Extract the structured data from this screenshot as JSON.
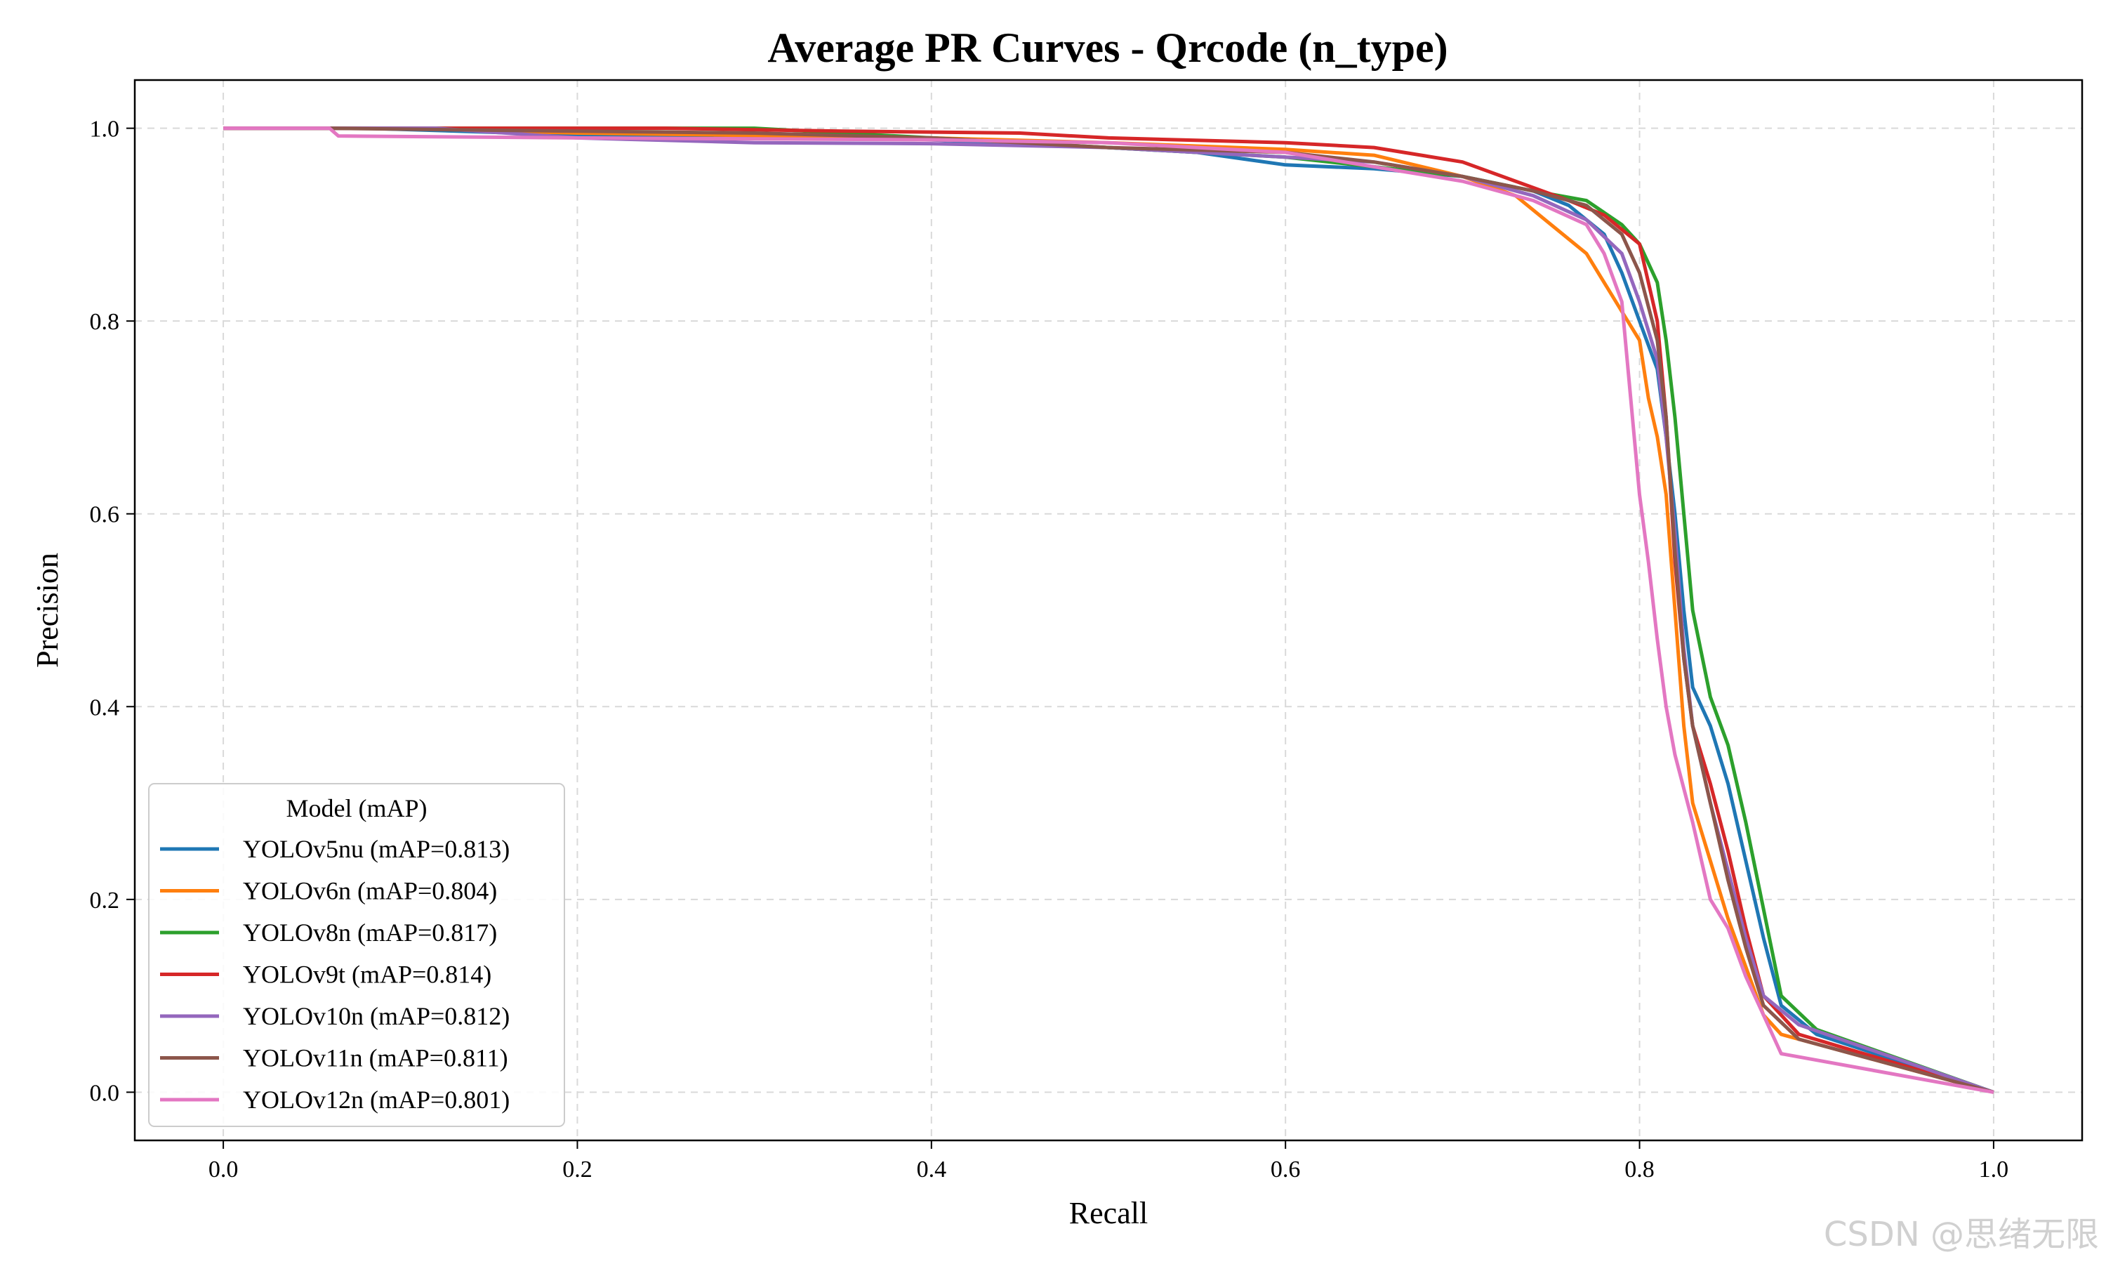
{
  "chart_data": {
    "type": "line",
    "title": "Average PR Curves - Qrcode (n_type)",
    "xlabel": "Recall",
    "ylabel": "Precision",
    "xlim": [
      -0.05,
      1.05
    ],
    "ylim": [
      -0.05,
      1.05
    ],
    "x_ticks": [
      0.0,
      0.2,
      0.4,
      0.6,
      0.8,
      1.0
    ],
    "x_tick_labels": [
      "0.0",
      "0.2",
      "0.4",
      "0.6",
      "0.8",
      "1.0"
    ],
    "y_ticks": [
      0.0,
      0.2,
      0.4,
      0.6,
      0.8,
      1.0
    ],
    "y_tick_labels": [
      "0.0",
      "0.2",
      "0.4",
      "0.6",
      "0.8",
      "1.0"
    ],
    "grid": true,
    "legend": {
      "title": "Model (mAP)",
      "position": "lower-left"
    },
    "series": [
      {
        "name": "YOLOv5nu (mAP=0.813)",
        "color": "#1f77b4",
        "points": [
          [
            0,
            1.0
          ],
          [
            0.08,
            1.0
          ],
          [
            0.2,
            0.993
          ],
          [
            0.4,
            0.988
          ],
          [
            0.5,
            0.98
          ],
          [
            0.55,
            0.975
          ],
          [
            0.6,
            0.962
          ],
          [
            0.65,
            0.958
          ],
          [
            0.7,
            0.95
          ],
          [
            0.74,
            0.935
          ],
          [
            0.76,
            0.92
          ],
          [
            0.78,
            0.89
          ],
          [
            0.79,
            0.85
          ],
          [
            0.8,
            0.8
          ],
          [
            0.81,
            0.75
          ],
          [
            0.815,
            0.68
          ],
          [
            0.82,
            0.6
          ],
          [
            0.825,
            0.5
          ],
          [
            0.83,
            0.42
          ],
          [
            0.84,
            0.38
          ],
          [
            0.85,
            0.32
          ],
          [
            0.86,
            0.24
          ],
          [
            0.87,
            0.16
          ],
          [
            0.88,
            0.09
          ],
          [
            0.9,
            0.06
          ],
          [
            1.0,
            0.0
          ]
        ]
      },
      {
        "name": "YOLOv6n (mAP=0.804)",
        "color": "#ff7f0e",
        "points": [
          [
            0,
            1.0
          ],
          [
            0.1,
            1.0
          ],
          [
            0.2,
            0.995
          ],
          [
            0.4,
            0.99
          ],
          [
            0.5,
            0.985
          ],
          [
            0.6,
            0.978
          ],
          [
            0.65,
            0.972
          ],
          [
            0.7,
            0.95
          ],
          [
            0.73,
            0.93
          ],
          [
            0.75,
            0.9
          ],
          [
            0.77,
            0.87
          ],
          [
            0.78,
            0.84
          ],
          [
            0.79,
            0.81
          ],
          [
            0.8,
            0.78
          ],
          [
            0.805,
            0.72
          ],
          [
            0.81,
            0.68
          ],
          [
            0.815,
            0.62
          ],
          [
            0.82,
            0.5
          ],
          [
            0.825,
            0.38
          ],
          [
            0.83,
            0.3
          ],
          [
            0.84,
            0.24
          ],
          [
            0.85,
            0.18
          ],
          [
            0.86,
            0.13
          ],
          [
            0.87,
            0.08
          ],
          [
            0.88,
            0.06
          ],
          [
            1.0,
            0.0
          ]
        ]
      },
      {
        "name": "YOLOv8n (mAP=0.817)",
        "color": "#2ca02c",
        "points": [
          [
            0,
            1.0
          ],
          [
            0.3,
            1.0
          ],
          [
            0.4,
            0.99
          ],
          [
            0.5,
            0.98
          ],
          [
            0.6,
            0.97
          ],
          [
            0.65,
            0.96
          ],
          [
            0.7,
            0.95
          ],
          [
            0.74,
            0.935
          ],
          [
            0.77,
            0.925
          ],
          [
            0.79,
            0.9
          ],
          [
            0.8,
            0.88
          ],
          [
            0.81,
            0.84
          ],
          [
            0.815,
            0.78
          ],
          [
            0.82,
            0.7
          ],
          [
            0.825,
            0.6
          ],
          [
            0.83,
            0.5
          ],
          [
            0.84,
            0.41
          ],
          [
            0.85,
            0.36
          ],
          [
            0.86,
            0.28
          ],
          [
            0.87,
            0.19
          ],
          [
            0.88,
            0.1
          ],
          [
            0.9,
            0.065
          ],
          [
            1.0,
            0.0
          ]
        ]
      },
      {
        "name": "YOLOv9t (mAP=0.814)",
        "color": "#d62728",
        "points": [
          [
            0,
            1.0
          ],
          [
            0.25,
            1.0
          ],
          [
            0.35,
            0.997
          ],
          [
            0.45,
            0.995
          ],
          [
            0.5,
            0.99
          ],
          [
            0.6,
            0.985
          ],
          [
            0.65,
            0.98
          ],
          [
            0.7,
            0.965
          ],
          [
            0.73,
            0.945
          ],
          [
            0.76,
            0.925
          ],
          [
            0.78,
            0.91
          ],
          [
            0.8,
            0.88
          ],
          [
            0.81,
            0.8
          ],
          [
            0.815,
            0.7
          ],
          [
            0.82,
            0.55
          ],
          [
            0.825,
            0.45
          ],
          [
            0.83,
            0.38
          ],
          [
            0.84,
            0.32
          ],
          [
            0.85,
            0.25
          ],
          [
            0.86,
            0.17
          ],
          [
            0.87,
            0.1
          ],
          [
            0.89,
            0.06
          ],
          [
            1.0,
            0.0
          ]
        ]
      },
      {
        "name": "YOLOv10n (mAP=0.812)",
        "color": "#9467bd",
        "points": [
          [
            0,
            1.0
          ],
          [
            0.12,
            1.0
          ],
          [
            0.2,
            0.99
          ],
          [
            0.3,
            0.985
          ],
          [
            0.4,
            0.984
          ],
          [
            0.5,
            0.98
          ],
          [
            0.6,
            0.97
          ],
          [
            0.65,
            0.965
          ],
          [
            0.7,
            0.95
          ],
          [
            0.74,
            0.93
          ],
          [
            0.77,
            0.905
          ],
          [
            0.79,
            0.87
          ],
          [
            0.8,
            0.82
          ],
          [
            0.81,
            0.76
          ],
          [
            0.815,
            0.68
          ],
          [
            0.82,
            0.58
          ],
          [
            0.825,
            0.46
          ],
          [
            0.83,
            0.38
          ],
          [
            0.84,
            0.3
          ],
          [
            0.85,
            0.23
          ],
          [
            0.86,
            0.16
          ],
          [
            0.87,
            0.1
          ],
          [
            0.89,
            0.07
          ],
          [
            1.0,
            0.0
          ]
        ]
      },
      {
        "name": "YOLOv11n (mAP=0.811)",
        "color": "#8c564b",
        "points": [
          [
            0,
            1.0
          ],
          [
            0.06,
            1.0
          ],
          [
            0.15,
            0.998
          ],
          [
            0.3,
            0.995
          ],
          [
            0.4,
            0.99
          ],
          [
            0.5,
            0.98
          ],
          [
            0.6,
            0.975
          ],
          [
            0.65,
            0.965
          ],
          [
            0.7,
            0.95
          ],
          [
            0.74,
            0.935
          ],
          [
            0.77,
            0.92
          ],
          [
            0.79,
            0.89
          ],
          [
            0.8,
            0.85
          ],
          [
            0.81,
            0.78
          ],
          [
            0.815,
            0.7
          ],
          [
            0.82,
            0.56
          ],
          [
            0.825,
            0.45
          ],
          [
            0.83,
            0.38
          ],
          [
            0.84,
            0.3
          ],
          [
            0.85,
            0.22
          ],
          [
            0.86,
            0.15
          ],
          [
            0.87,
            0.09
          ],
          [
            0.89,
            0.055
          ],
          [
            1.0,
            0.0
          ]
        ]
      },
      {
        "name": "YOLOv12n (mAP=0.801)",
        "color": "#e377c2",
        "points": [
          [
            0,
            1.0
          ],
          [
            0.06,
            1.0
          ],
          [
            0.065,
            0.992
          ],
          [
            0.2,
            0.99
          ],
          [
            0.4,
            0.988
          ],
          [
            0.5,
            0.985
          ],
          [
            0.55,
            0.98
          ],
          [
            0.6,
            0.975
          ],
          [
            0.65,
            0.96
          ],
          [
            0.7,
            0.945
          ],
          [
            0.74,
            0.925
          ],
          [
            0.77,
            0.9
          ],
          [
            0.78,
            0.87
          ],
          [
            0.79,
            0.82
          ],
          [
            0.795,
            0.72
          ],
          [
            0.8,
            0.62
          ],
          [
            0.805,
            0.55
          ],
          [
            0.81,
            0.47
          ],
          [
            0.815,
            0.4
          ],
          [
            0.82,
            0.35
          ],
          [
            0.83,
            0.28
          ],
          [
            0.84,
            0.2
          ],
          [
            0.85,
            0.17
          ],
          [
            0.86,
            0.12
          ],
          [
            0.87,
            0.08
          ],
          [
            0.88,
            0.04
          ],
          [
            1.0,
            0.0
          ]
        ]
      }
    ]
  },
  "watermark": "CSDN @思绪无限"
}
